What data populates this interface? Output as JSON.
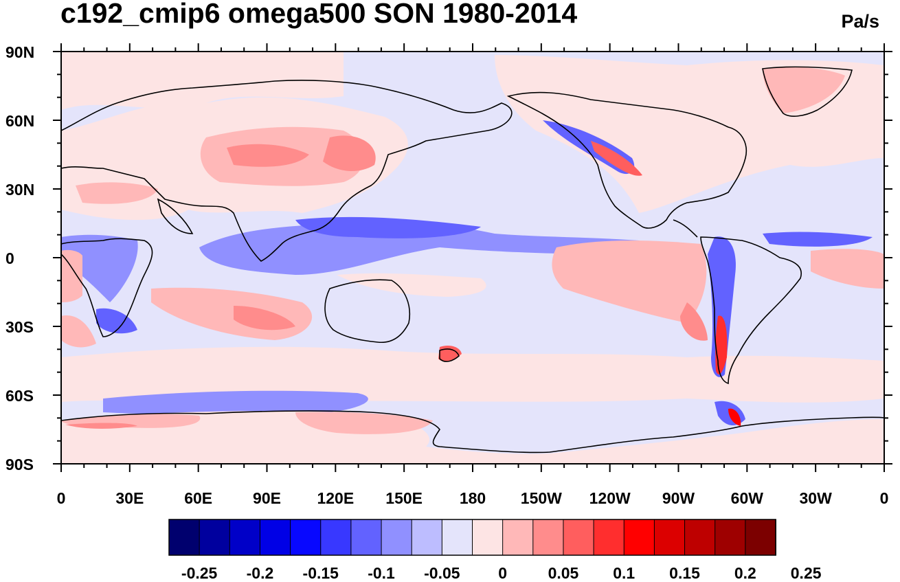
{
  "title": "c192_cmip6 omega500 SON 1980-2014",
  "units": "Pa/s",
  "map": {
    "variable": "omega500",
    "projection": "cylindrical equidistant",
    "lon_range": [
      0,
      360
    ],
    "lat_range": [
      -90,
      90
    ],
    "lat_ticks": [
      "90N",
      "60N",
      "30N",
      "0",
      "30S",
      "60S",
      "90S"
    ],
    "lon_ticks": [
      "0",
      "30E",
      "60E",
      "90E",
      "120E",
      "150E",
      "180",
      "150W",
      "120W",
      "90W",
      "60W",
      "30W",
      "0"
    ]
  },
  "colorbar": {
    "labels": [
      "-0.25",
      "-0.2",
      "-0.15",
      "-0.1",
      "-0.05",
      "0",
      "0.05",
      "0.1",
      "0.15",
      "0.2",
      "0.25"
    ],
    "colors": [
      "#00006e",
      "#00009e",
      "#0000c8",
      "#0000e6",
      "#0808ff",
      "#3838ff",
      "#6262ff",
      "#9090ff",
      "#bdbdff",
      "#e4e4fb",
      "#fde4e4",
      "#ffb8b8",
      "#ff8c8c",
      "#ff5e5e",
      "#ff2e2e",
      "#ff0000",
      "#dc0000",
      "#be0000",
      "#9e0000",
      "#7c0000"
    ]
  }
}
